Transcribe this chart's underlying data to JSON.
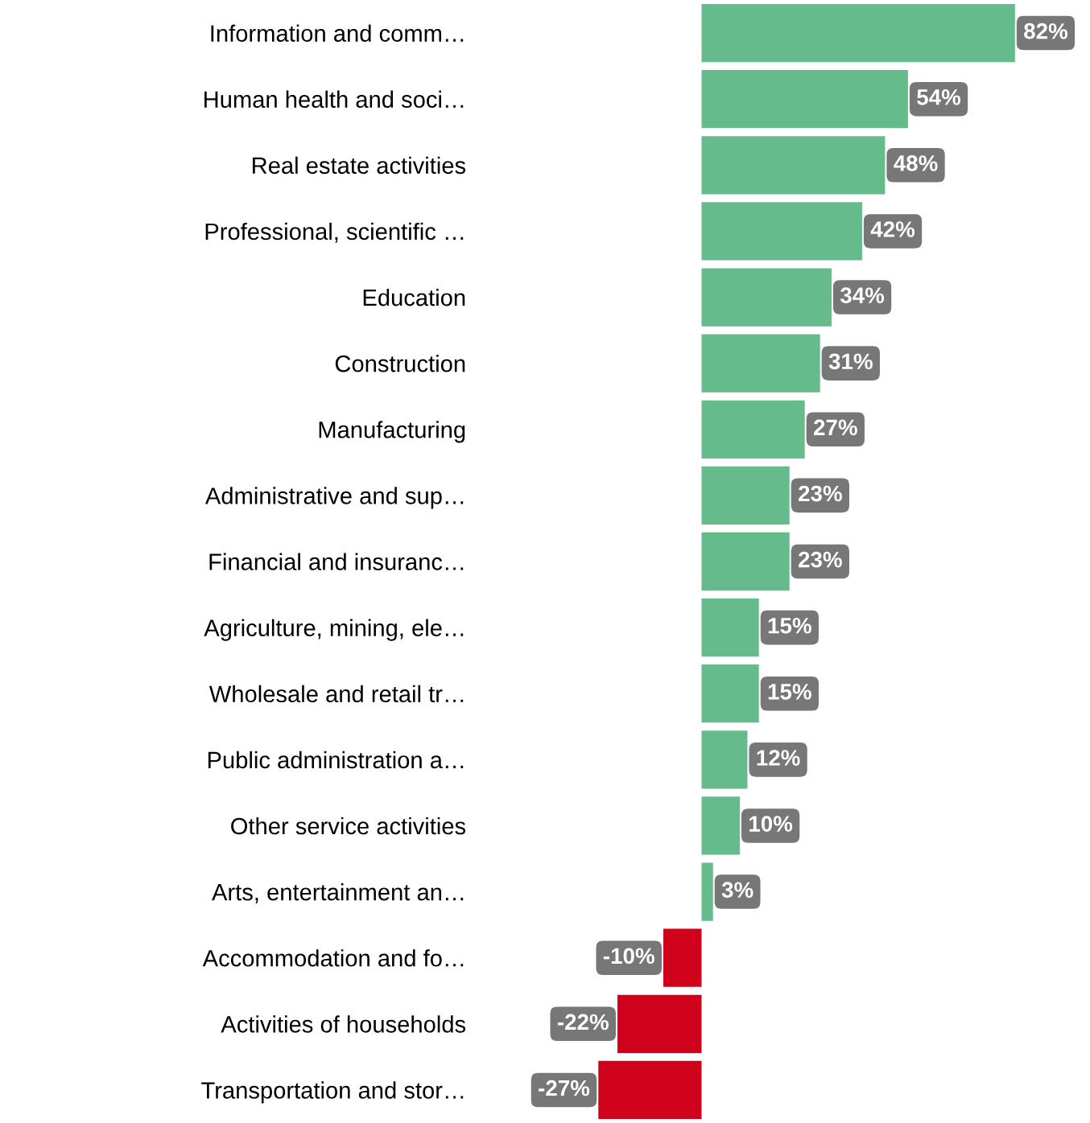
{
  "chart_data": {
    "type": "bar",
    "orientation": "horizontal",
    "categories": [
      "Information and comm…",
      "Human health and soci…",
      "Real estate activities",
      "Professional, scientific …",
      "Education",
      "Construction",
      "Manufacturing",
      "Administrative and sup…",
      "Financial and insuranc…",
      "Agriculture, mining, ele…",
      "Wholesale and retail tr…",
      "Public administration a…",
      "Other service activities",
      "Arts, entertainment an…",
      "Accommodation and fo…",
      "Activities of households",
      "Transportation and stor…"
    ],
    "values": [
      82,
      54,
      48,
      42,
      34,
      31,
      27,
      23,
      23,
      15,
      15,
      12,
      10,
      3,
      -10,
      -22,
      -27
    ],
    "value_labels": [
      "82%",
      "54%",
      "48%",
      "42%",
      "34%",
      "31%",
      "27%",
      "23%",
      "23%",
      "15%",
      "15%",
      "12%",
      "10%",
      "3%",
      "-10%",
      "-22%",
      "-27%"
    ],
    "colors": [
      "#66bb8c",
      "#66bb8c",
      "#66bb8c",
      "#66bb8c",
      "#66bb8c",
      "#66bb8c",
      "#66bb8c",
      "#66bb8c",
      "#66bb8c",
      "#66bb8c",
      "#66bb8c",
      "#66bb8c",
      "#66bb8c",
      "#66bb8c",
      "#d0021b",
      "#d0021b",
      "#d0021b"
    ],
    "grid": false,
    "legend": false
  }
}
